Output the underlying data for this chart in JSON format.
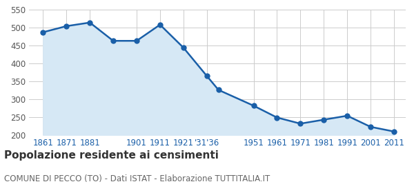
{
  "x_labels": [
    "1861",
    "1871",
    "1881",
    "",
    "1901",
    "1911",
    "1921",
    "'31'36",
    "",
    "1951",
    "1961",
    "1971",
    "1981",
    "1991",
    "2001",
    "2011"
  ],
  "x_positions": [
    1861,
    1871,
    1881,
    1891,
    1901,
    1911,
    1921,
    1931,
    1936,
    1951,
    1961,
    1971,
    1981,
    1991,
    2001,
    2011
  ],
  "y_values": [
    487,
    504,
    514,
    463,
    463,
    508,
    444,
    365,
    326,
    282,
    249,
    232,
    243,
    254,
    223,
    210
  ],
  "line_color": "#1a5fa8",
  "fill_color": "#d6e8f5",
  "marker_color": "#1a5fa8",
  "marker_size": 5,
  "line_width": 1.8,
  "ylim": [
    200,
    550
  ],
  "yticks": [
    200,
    250,
    300,
    350,
    400,
    450,
    500,
    550
  ],
  "grid_color": "#cccccc",
  "background_color": "#ffffff",
  "title": "Popolazione residente ai censimenti",
  "subtitle": "COMUNE DI PECCO (TO) - Dati ISTAT - Elaborazione TUTTITALIA.IT",
  "title_fontsize": 11,
  "subtitle_fontsize": 8.5,
  "tick_label_color": "#1a5fa8",
  "tick_fontsize": 8.5
}
